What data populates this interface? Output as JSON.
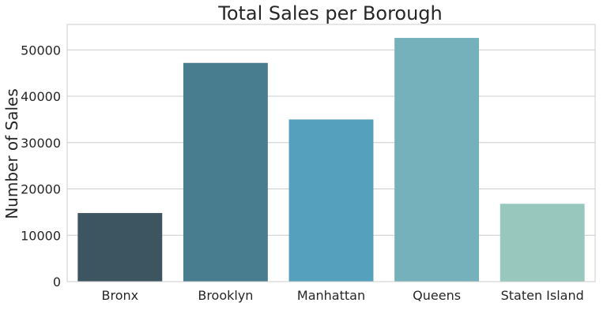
{
  "chart_data": {
    "type": "bar",
    "title": "Total Sales per Borough",
    "xlabel": "",
    "ylabel": "Number of Sales",
    "categories": [
      "Bronx",
      "Brooklyn",
      "Manhattan",
      "Queens",
      "Staten Island"
    ],
    "values": [
      14800,
      47200,
      35000,
      52600,
      16800
    ],
    "colors": [
      "#3d5560",
      "#487c8f",
      "#55a0bd",
      "#75b1bb",
      "#98c8bd"
    ],
    "ylim": [
      0,
      55500
    ],
    "yticks": [
      0,
      10000,
      20000,
      30000,
      40000,
      50000
    ],
    "grid": "y",
    "legend": "none"
  }
}
